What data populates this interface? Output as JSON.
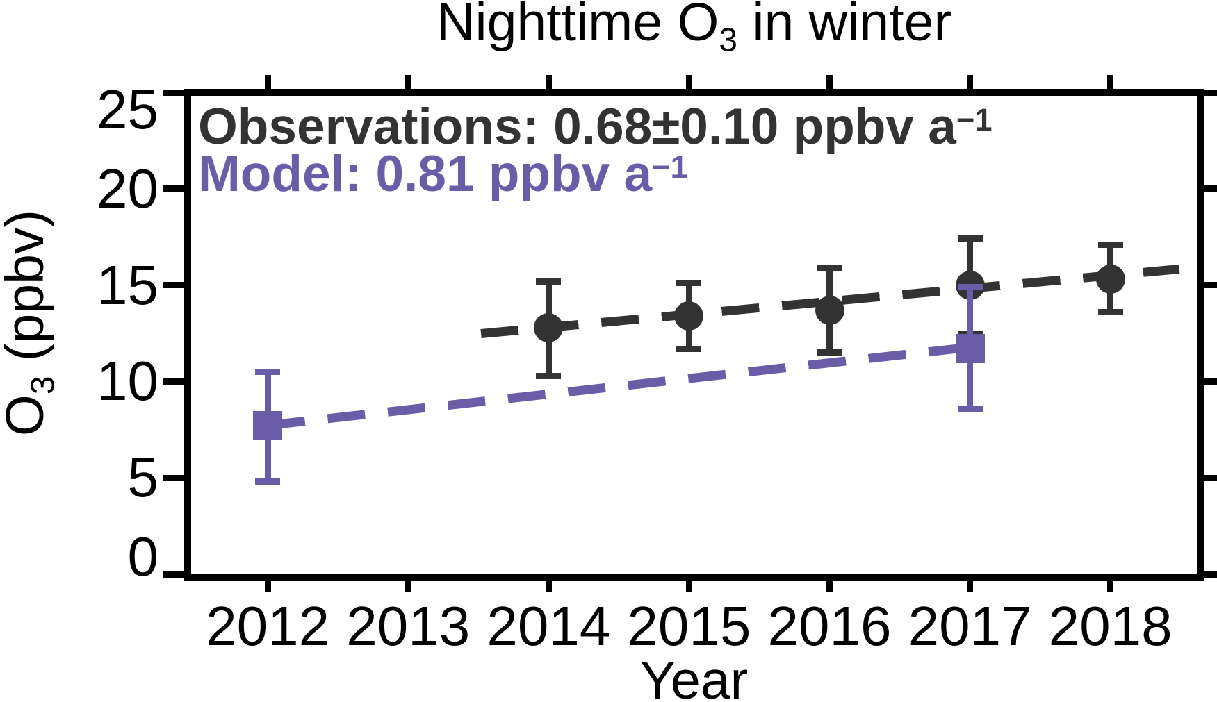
{
  "title": {
    "pre": "Nighttime O",
    "sub": "3",
    "post": " in winter"
  },
  "axes": {
    "x": {
      "label": "Year"
    },
    "y": {
      "label_pre": "O",
      "label_sub": "3",
      "label_post": " (ppbv)"
    }
  },
  "annotations": {
    "observations": {
      "text": "Observations: 0.68±0.10 ppbv a",
      "sup": "−1",
      "color": "#333333"
    },
    "model": {
      "text": "Model: 0.81 ppbv a",
      "sup": "−1",
      "color": "#6b5ca7"
    }
  },
  "chart_data": {
    "type": "scatter",
    "title": "Nighttime O3 in winter",
    "xlabel": "Year",
    "ylabel": "O3 (ppbv)",
    "xlim": [
      2011.43,
      2018.64
    ],
    "ylim": [
      0,
      25
    ],
    "x_ticks": [
      2012,
      2013,
      2014,
      2015,
      2016,
      2017,
      2018
    ],
    "y_ticks": [
      0,
      5,
      10,
      15,
      20,
      25
    ],
    "grid": false,
    "series": [
      {
        "name": "Observations",
        "marker": "circle",
        "color": "#333333",
        "trend_ppbv_per_yr": "0.68±0.10",
        "points": [
          {
            "x": 2014,
            "y": 12.8,
            "y_lo": 10.3,
            "y_hi": 15.2
          },
          {
            "x": 2015,
            "y": 13.4,
            "y_lo": 11.7,
            "y_hi": 15.1
          },
          {
            "x": 2016,
            "y": 13.7,
            "y_lo": 11.5,
            "y_hi": 15.9
          },
          {
            "x": 2017,
            "y": 15.0,
            "y_lo": 12.5,
            "y_hi": 17.4
          },
          {
            "x": 2018,
            "y": 15.3,
            "y_lo": 13.6,
            "y_hi": 17.1
          }
        ],
        "trend_line": {
          "x1": 2013.52,
          "y1": 12.5,
          "x2": 2018.49,
          "y2": 15.85
        }
      },
      {
        "name": "Model",
        "marker": "square",
        "color": "#6b5ca7",
        "trend_ppbv_per_yr": "0.81",
        "points": [
          {
            "x": 2012,
            "y": 7.7,
            "y_lo": 4.8,
            "y_hi": 10.5
          },
          {
            "x": 2017,
            "y": 11.7,
            "y_lo": 8.6,
            "y_hi": 14.9
          }
        ],
        "trend_line": {
          "x1": 2012.0,
          "y1": 7.71,
          "x2": 2017.0,
          "y2": 11.76
        }
      }
    ]
  }
}
